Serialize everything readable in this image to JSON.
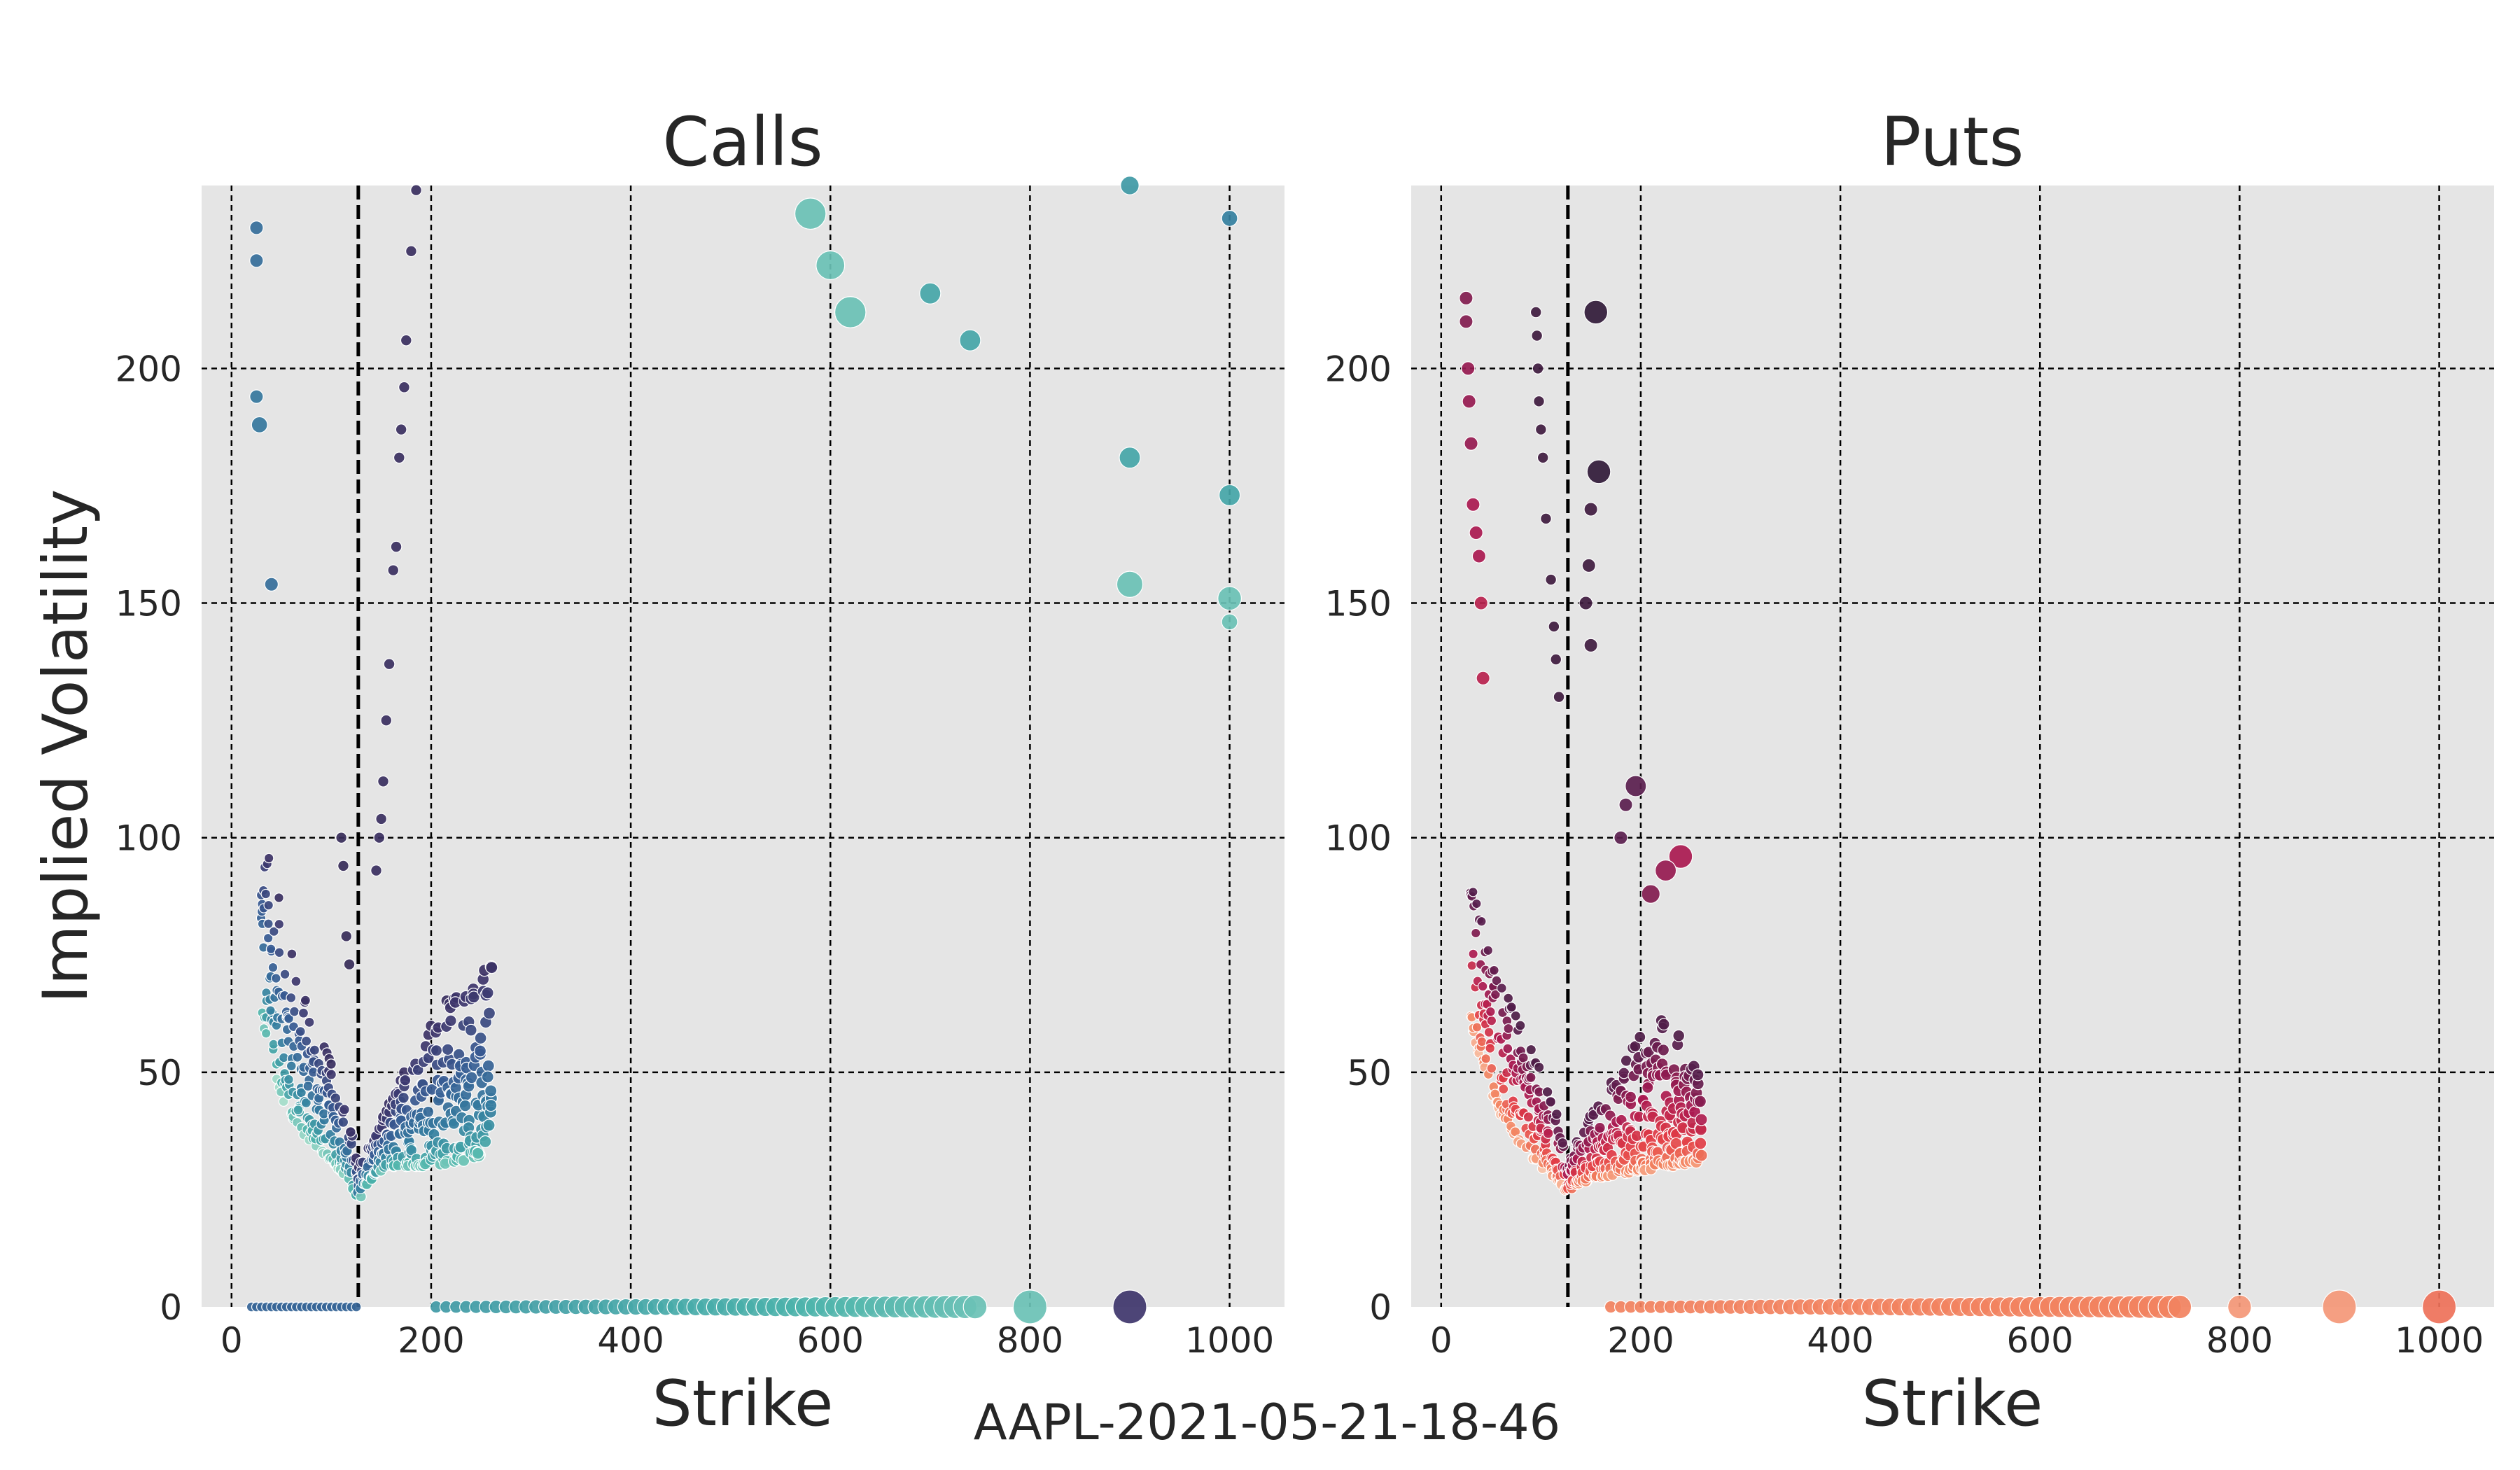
{
  "figure": {
    "footer": "AAPL-2021-05-21-18-46",
    "ylabel": "Implied Volatility"
  },
  "colors": {
    "background": "#e5e5e5",
    "grid": "#000000",
    "spot_line": "#000000"
  },
  "chart_data": [
    {
      "type": "scatter",
      "title": "Calls",
      "xlabel": "Strike",
      "ylabel": "Implied Volatility",
      "xlim": [
        -30,
        1055
      ],
      "ylim": [
        0,
        239
      ],
      "xticks": [
        0,
        200,
        400,
        600,
        800,
        1000
      ],
      "yticks": [
        0,
        50,
        100,
        150,
        200
      ],
      "grid": true,
      "spot_price": 127,
      "colormap": "mako",
      "points": [
        {
          "x": 25,
          "y": 230,
          "c": 0.5,
          "s": 0.2
        },
        {
          "x": 25,
          "y": 223,
          "c": 0.5,
          "s": 0.2
        },
        {
          "x": 25,
          "y": 194,
          "c": 0.55,
          "s": 0.2
        },
        {
          "x": 28,
          "y": 188,
          "c": 0.55,
          "s": 0.3
        },
        {
          "x": 40,
          "y": 154,
          "c": 0.5,
          "s": 0.2
        },
        {
          "x": 185,
          "y": 238,
          "c": 0.15,
          "s": 0.1
        },
        {
          "x": 180,
          "y": 225,
          "c": 0.15,
          "s": 0.1
        },
        {
          "x": 175,
          "y": 206,
          "c": 0.15,
          "s": 0.1
        },
        {
          "x": 173,
          "y": 196,
          "c": 0.15,
          "s": 0.1
        },
        {
          "x": 170,
          "y": 187,
          "c": 0.15,
          "s": 0.1
        },
        {
          "x": 168,
          "y": 181,
          "c": 0.15,
          "s": 0.1
        },
        {
          "x": 165,
          "y": 162,
          "c": 0.15,
          "s": 0.1
        },
        {
          "x": 162,
          "y": 157,
          "c": 0.15,
          "s": 0.1
        },
        {
          "x": 158,
          "y": 137,
          "c": 0.15,
          "s": 0.1
        },
        {
          "x": 155,
          "y": 125,
          "c": 0.15,
          "s": 0.1
        },
        {
          "x": 152,
          "y": 112,
          "c": 0.15,
          "s": 0.1
        },
        {
          "x": 150,
          "y": 104,
          "c": 0.15,
          "s": 0.1
        },
        {
          "x": 148,
          "y": 100,
          "c": 0.15,
          "s": 0.1
        },
        {
          "x": 145,
          "y": 93,
          "c": 0.15,
          "s": 0.1
        },
        {
          "x": 110,
          "y": 100,
          "c": 0.12,
          "s": 0.1
        },
        {
          "x": 112,
          "y": 94,
          "c": 0.12,
          "s": 0.1
        },
        {
          "x": 115,
          "y": 79,
          "c": 0.12,
          "s": 0.1
        },
        {
          "x": 118,
          "y": 73,
          "c": 0.12,
          "s": 0.1
        },
        {
          "x": 580,
          "y": 233,
          "c": 0.85,
          "s": 0.9
        },
        {
          "x": 600,
          "y": 222,
          "c": 0.85,
          "s": 0.8
        },
        {
          "x": 620,
          "y": 212,
          "c": 0.85,
          "s": 0.9
        },
        {
          "x": 700,
          "y": 216,
          "c": 0.75,
          "s": 0.5
        },
        {
          "x": 740,
          "y": 206,
          "c": 0.75,
          "s": 0.5
        },
        {
          "x": 900,
          "y": 239,
          "c": 0.7,
          "s": 0.4
        },
        {
          "x": 900,
          "y": 181,
          "c": 0.75,
          "s": 0.5
        },
        {
          "x": 900,
          "y": 154,
          "c": 0.85,
          "s": 0.7
        },
        {
          "x": 1000,
          "y": 232,
          "c": 0.6,
          "s": 0.3
        },
        {
          "x": 1000,
          "y": 173,
          "c": 0.75,
          "s": 0.5
        },
        {
          "x": 1000,
          "y": 151,
          "c": 0.85,
          "s": 0.6
        },
        {
          "x": 1000,
          "y": 146,
          "c": 0.85,
          "s": 0.3
        },
        {
          "x": 900,
          "y": 0,
          "c": 0.2,
          "s": 1.0
        },
        {
          "x": 800,
          "y": 0,
          "c": 0.85,
          "s": 1.0
        }
      ],
      "smile_lower": [
        [
          30,
          60
        ],
        [
          40,
          52
        ],
        [
          50,
          45
        ],
        [
          60,
          40
        ],
        [
          70,
          37
        ],
        [
          80,
          35
        ],
        [
          90,
          33
        ],
        [
          100,
          31
        ],
        [
          110,
          29
        ],
        [
          120,
          26
        ],
        [
          127,
          22
        ],
        [
          135,
          26
        ],
        [
          150,
          29
        ],
        [
          170,
          30
        ],
        [
          200,
          30
        ],
        [
          230,
          31
        ],
        [
          260,
          33
        ]
      ],
      "smile_upper": [
        [
          30,
          105
        ],
        [
          40,
          95
        ],
        [
          50,
          85
        ],
        [
          60,
          77
        ],
        [
          70,
          70
        ],
        [
          80,
          63
        ],
        [
          90,
          58
        ],
        [
          100,
          52
        ],
        [
          110,
          46
        ],
        [
          120,
          38
        ],
        [
          127,
          30
        ],
        [
          135,
          34
        ],
        [
          150,
          40
        ],
        [
          170,
          50
        ],
        [
          190,
          58
        ],
        [
          210,
          64
        ],
        [
          230,
          70
        ],
        [
          260,
          75
        ]
      ],
      "zero_row": {
        "x_start": 205,
        "x_end": 745,
        "step": 10,
        "y": 0
      },
      "zero_row_left": {
        "x_start": 20,
        "x_end": 125,
        "step": 5,
        "y": 0
      }
    },
    {
      "type": "scatter",
      "title": "Puts",
      "xlabel": "Strike",
      "ylabel": "",
      "xlim": [
        -30,
        1055
      ],
      "ylim": [
        0,
        239
      ],
      "xticks": [
        0,
        200,
        400,
        600,
        800,
        1000
      ],
      "yticks": [
        0,
        50,
        100,
        150,
        200
      ],
      "grid": true,
      "spot_price": 127,
      "colormap": "rocket",
      "points": [
        {
          "x": 25,
          "y": 215,
          "c": 0.3,
          "s": 0.2
        },
        {
          "x": 25,
          "y": 210,
          "c": 0.3,
          "s": 0.2
        },
        {
          "x": 27,
          "y": 200,
          "c": 0.35,
          "s": 0.2
        },
        {
          "x": 28,
          "y": 193,
          "c": 0.35,
          "s": 0.2
        },
        {
          "x": 30,
          "y": 184,
          "c": 0.35,
          "s": 0.2
        },
        {
          "x": 32,
          "y": 171,
          "c": 0.4,
          "s": 0.2
        },
        {
          "x": 35,
          "y": 165,
          "c": 0.4,
          "s": 0.2
        },
        {
          "x": 38,
          "y": 160,
          "c": 0.4,
          "s": 0.2
        },
        {
          "x": 40,
          "y": 150,
          "c": 0.45,
          "s": 0.2
        },
        {
          "x": 42,
          "y": 134,
          "c": 0.45,
          "s": 0.2
        },
        {
          "x": 95,
          "y": 212,
          "c": 0.1,
          "s": 0.1
        },
        {
          "x": 96,
          "y": 207,
          "c": 0.1,
          "s": 0.1
        },
        {
          "x": 97,
          "y": 200,
          "c": 0.1,
          "s": 0.1
        },
        {
          "x": 98,
          "y": 193,
          "c": 0.1,
          "s": 0.1
        },
        {
          "x": 100,
          "y": 187,
          "c": 0.1,
          "s": 0.1
        },
        {
          "x": 102,
          "y": 181,
          "c": 0.1,
          "s": 0.1
        },
        {
          "x": 105,
          "y": 168,
          "c": 0.1,
          "s": 0.1
        },
        {
          "x": 110,
          "y": 155,
          "c": 0.1,
          "s": 0.1
        },
        {
          "x": 113,
          "y": 145,
          "c": 0.1,
          "s": 0.1
        },
        {
          "x": 115,
          "y": 138,
          "c": 0.1,
          "s": 0.1
        },
        {
          "x": 118,
          "y": 130,
          "c": 0.1,
          "s": 0.1
        },
        {
          "x": 155,
          "y": 212,
          "c": 0.05,
          "s": 0.6
        },
        {
          "x": 158,
          "y": 178,
          "c": 0.05,
          "s": 0.6
        },
        {
          "x": 150,
          "y": 170,
          "c": 0.1,
          "s": 0.2
        },
        {
          "x": 148,
          "y": 158,
          "c": 0.1,
          "s": 0.2
        },
        {
          "x": 145,
          "y": 150,
          "c": 0.1,
          "s": 0.2
        },
        {
          "x": 150,
          "y": 141,
          "c": 0.1,
          "s": 0.2
        },
        {
          "x": 195,
          "y": 111,
          "c": 0.2,
          "s": 0.5
        },
        {
          "x": 185,
          "y": 107,
          "c": 0.2,
          "s": 0.2
        },
        {
          "x": 180,
          "y": 100,
          "c": 0.2,
          "s": 0.2
        },
        {
          "x": 240,
          "y": 96,
          "c": 0.4,
          "s": 0.6
        },
        {
          "x": 225,
          "y": 93,
          "c": 0.35,
          "s": 0.5
        },
        {
          "x": 210,
          "y": 88,
          "c": 0.3,
          "s": 0.4
        }
      ],
      "smile_lower": [
        [
          30,
          60
        ],
        [
          40,
          52
        ],
        [
          50,
          46
        ],
        [
          60,
          41
        ],
        [
          70,
          37
        ],
        [
          80,
          34
        ],
        [
          90,
          32
        ],
        [
          100,
          30
        ],
        [
          110,
          28
        ],
        [
          120,
          26
        ],
        [
          127,
          24
        ],
        [
          135,
          26
        ],
        [
          150,
          27
        ],
        [
          170,
          28
        ],
        [
          200,
          29
        ],
        [
          230,
          30
        ],
        [
          260,
          31
        ]
      ],
      "smile_upper": [
        [
          30,
          92
        ],
        [
          40,
          85
        ],
        [
          50,
          78
        ],
        [
          60,
          71
        ],
        [
          70,
          65
        ],
        [
          80,
          60
        ],
        [
          90,
          55
        ],
        [
          100,
          50
        ],
        [
          110,
          45
        ],
        [
          120,
          38
        ],
        [
          127,
          32
        ],
        [
          140,
          38
        ],
        [
          160,
          45
        ],
        [
          180,
          52
        ],
        [
          200,
          58
        ],
        [
          220,
          62
        ],
        [
          240,
          58
        ],
        [
          260,
          50
        ]
      ],
      "zero_row": {
        "x_start": 170,
        "x_end": 745,
        "step": 10,
        "y": 0
      },
      "zero_row_left": {
        "x_start": 0,
        "x_end": 0,
        "step": 5,
        "y": 0
      },
      "extra_zero": [
        {
          "x": 800,
          "c": 0.85,
          "s": 0.6
        },
        {
          "x": 900,
          "c": 0.85,
          "s": 1.0
        },
        {
          "x": 1000,
          "c": 0.75,
          "s": 1.0
        }
      ]
    }
  ]
}
